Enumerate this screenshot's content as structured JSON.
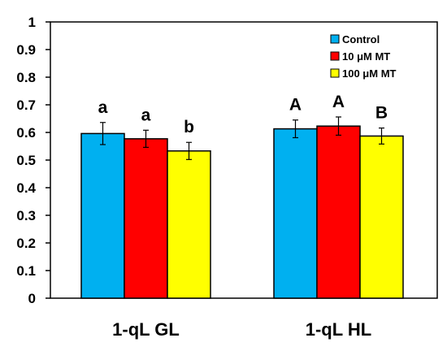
{
  "chart_data": {
    "type": "bar",
    "categories": [
      "1-qL GL",
      "1-qL HL"
    ],
    "series": [
      {
        "name": "Control",
        "color": "#00B0F0",
        "values": [
          0.596,
          0.613
        ],
        "errors": [
          0.04,
          0.032
        ],
        "sig": [
          "a",
          "A"
        ]
      },
      {
        "name": "10 μM MT",
        "color": "#FF0000",
        "values": [
          0.577,
          0.623
        ],
        "errors": [
          0.031,
          0.033
        ],
        "sig": [
          "a",
          "A"
        ]
      },
      {
        "name": "100 μM MT",
        "color": "#FFFF00",
        "values": [
          0.533,
          0.587
        ],
        "errors": [
          0.031,
          0.029
        ],
        "sig": [
          "b",
          "B"
        ]
      }
    ],
    "ylim": [
      0,
      1
    ],
    "yticks": [
      0,
      0.1,
      0.2,
      0.3,
      0.4,
      0.5,
      0.6,
      0.7,
      0.8,
      0.9,
      1
    ],
    "ytick_labels": [
      "0",
      "0.1",
      "0.2",
      "0.3",
      "0.4",
      "0.5",
      "0.6",
      "0.7",
      "0.8",
      "0.9",
      "1"
    ],
    "grid": false,
    "legend_position": "top-right"
  }
}
